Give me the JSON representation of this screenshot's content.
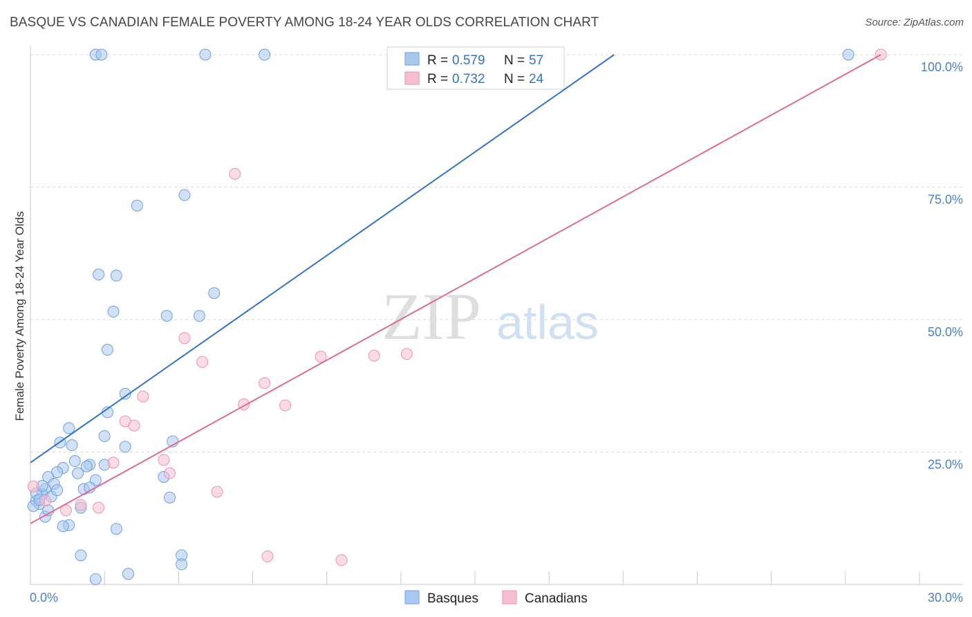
{
  "title": "BASQUE VS CANADIAN FEMALE POVERTY AMONG 18-24 YEAR OLDS CORRELATION CHART",
  "source": "Source: ZipAtlas.com",
  "watermark": {
    "zip": "ZIP",
    "atlas": "atlas"
  },
  "colors": {
    "basque_fill": "#a9c8f0",
    "basque_stroke": "#6f9fdc",
    "basque_line": "#2f74c8",
    "canadian_fill": "#f6bdd0",
    "canadian_stroke": "#ea93b0",
    "canadian_line": "#e06a93",
    "grid": "#d8d8d8",
    "tick_label": "#4a7fcc",
    "axis_label": "#333333"
  },
  "legend": {
    "rows": [
      {
        "r_label": "R = ",
        "r_value": "0.579",
        "n_label": "N = ",
        "n_value": "57"
      },
      {
        "r_label": "R = ",
        "r_value": "0.732",
        "n_label": "N = ",
        "n_value": "24"
      }
    ],
    "bottom": [
      "Basques",
      "Canadians"
    ]
  },
  "chart_data": {
    "type": "scatter",
    "xlabel": "",
    "ylabel": "Female Poverty Among 18-24 Year Olds",
    "xlim": [
      0,
      30
    ],
    "ylim": [
      0,
      100
    ],
    "x_tick_labels": [
      "0.0%",
      "30.0%"
    ],
    "y_ticks": [
      25,
      50,
      75,
      100
    ],
    "y_tick_labels": [
      "25.0%",
      "50.0%",
      "75.0%",
      "100.0%"
    ],
    "grid": "horizontal dashed",
    "legend_position": "top-center",
    "series": [
      {
        "name": "Basques",
        "r": 0.579,
        "n": 57,
        "trendline": {
          "x": [
            0.0,
            19.7
          ],
          "y": [
            23.0,
            100.0
          ]
        },
        "points": [
          [
            2.2,
            100
          ],
          [
            2.4,
            100
          ],
          [
            5.9,
            100
          ],
          [
            7.9,
            100
          ],
          [
            27.6,
            100
          ],
          [
            5.2,
            73.5
          ],
          [
            3.6,
            71.5
          ],
          [
            2.3,
            58.5
          ],
          [
            2.9,
            58.3
          ],
          [
            6.2,
            55.0
          ],
          [
            2.8,
            51.5
          ],
          [
            4.6,
            50.7
          ],
          [
            5.7,
            50.7
          ],
          [
            2.6,
            44.3
          ],
          [
            3.2,
            36.0
          ],
          [
            2.6,
            32.5
          ],
          [
            2.5,
            28.0
          ],
          [
            1.3,
            29.5
          ],
          [
            4.8,
            27.0
          ],
          [
            1.0,
            26.8
          ],
          [
            1.4,
            26.3
          ],
          [
            3.2,
            26.0
          ],
          [
            1.5,
            23.3
          ],
          [
            1.1,
            22.0
          ],
          [
            2.0,
            22.6
          ],
          [
            1.9,
            22.3
          ],
          [
            0.9,
            21.2
          ],
          [
            0.6,
            20.3
          ],
          [
            0.8,
            19.0
          ],
          [
            2.2,
            19.7
          ],
          [
            4.5,
            20.3
          ],
          [
            0.5,
            18.0
          ],
          [
            1.8,
            18.0
          ],
          [
            2.0,
            18.3
          ],
          [
            0.4,
            17.0
          ],
          [
            4.7,
            16.4
          ],
          [
            0.2,
            15.8
          ],
          [
            0.7,
            16.6
          ],
          [
            0.3,
            15.2
          ],
          [
            0.1,
            14.8
          ],
          [
            1.7,
            14.5
          ],
          [
            0.5,
            12.8
          ],
          [
            1.3,
            11.2
          ],
          [
            1.1,
            11.0
          ],
          [
            2.9,
            10.5
          ],
          [
            1.7,
            5.5
          ],
          [
            5.1,
            5.5
          ],
          [
            5.1,
            3.8
          ],
          [
            3.3,
            2.0
          ],
          [
            2.2,
            1.0
          ],
          [
            0.2,
            17.2
          ],
          [
            0.3,
            16.0
          ],
          [
            1.6,
            21.0
          ],
          [
            0.9,
            17.8
          ],
          [
            2.5,
            22.6
          ],
          [
            0.6,
            14.0
          ],
          [
            0.4,
            18.6
          ]
        ]
      },
      {
        "name": "Canadians",
        "r": 0.732,
        "n": 24,
        "trendline": {
          "x": [
            0.0,
            28.7
          ],
          "y": [
            11.5,
            100.0
          ]
        },
        "points": [
          [
            28.7,
            100
          ],
          [
            6.9,
            77.5
          ],
          [
            5.2,
            46.5
          ],
          [
            9.8,
            43.0
          ],
          [
            11.6,
            43.2
          ],
          [
            12.7,
            43.5
          ],
          [
            5.8,
            42.0
          ],
          [
            7.9,
            38.0
          ],
          [
            3.8,
            35.5
          ],
          [
            7.2,
            34.0
          ],
          [
            8.6,
            33.8
          ],
          [
            3.2,
            30.8
          ],
          [
            3.5,
            30.0
          ],
          [
            4.5,
            23.5
          ],
          [
            2.8,
            23.0
          ],
          [
            4.7,
            21.0
          ],
          [
            6.3,
            17.5
          ],
          [
            0.1,
            18.5
          ],
          [
            1.2,
            14.0
          ],
          [
            1.7,
            15.0
          ],
          [
            2.3,
            14.5
          ],
          [
            0.5,
            15.8
          ],
          [
            8.0,
            5.3
          ],
          [
            10.5,
            4.6
          ]
        ]
      }
    ]
  }
}
